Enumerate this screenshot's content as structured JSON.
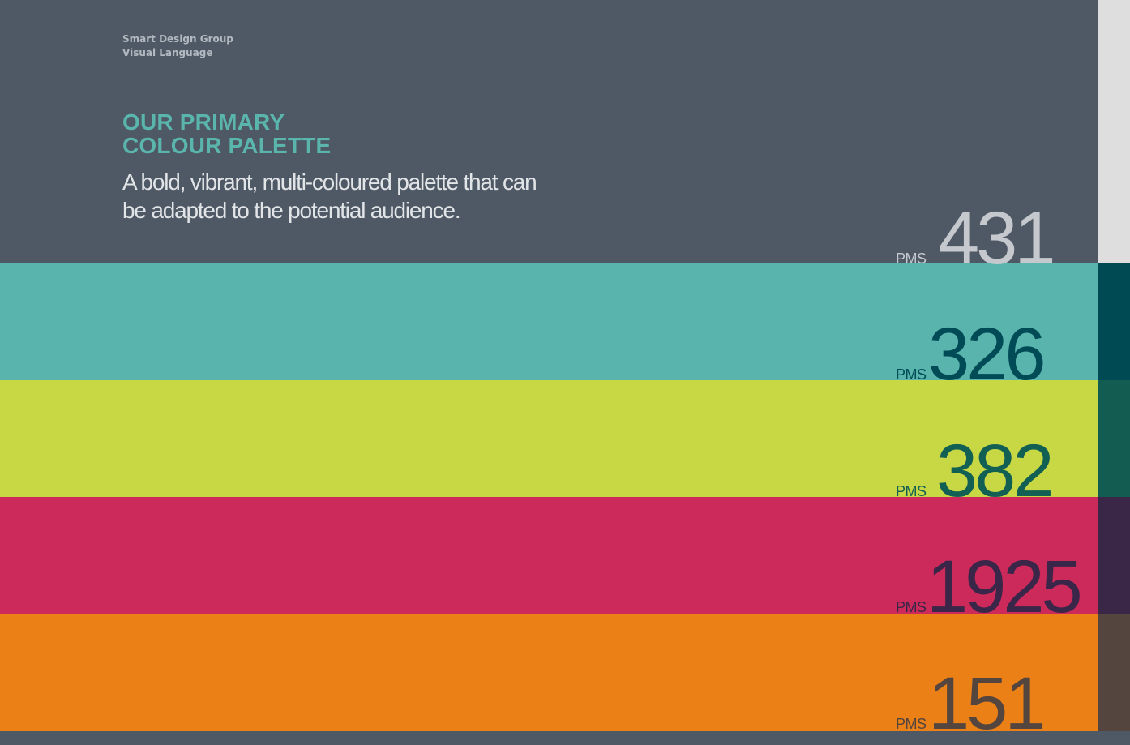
{
  "header": {
    "company": "Smart Design Group",
    "document": "Visual Language"
  },
  "section": {
    "title_line1": "OUR PRIMARY",
    "title_line2": "COLOUR PALETTE",
    "description": "A bold, vibrant, multi-coloured palette that can be adapted to the potential audience."
  },
  "palette": [
    {
      "label": "PMS",
      "number": "431",
      "color": "#4f5965",
      "text_color": "#c5c8cd",
      "tab_color": "#dddedd"
    },
    {
      "label": "PMS",
      "number": "326",
      "color": "#58b4ad",
      "text_color": "#004b55",
      "tab_color": "#004a53"
    },
    {
      "label": "PMS",
      "number": "382",
      "color": "#c8d844",
      "text_color": "#125f53",
      "tab_color": "#125c52"
    },
    {
      "label": "PMS",
      "number": "1925",
      "color": "#cc2a5b",
      "text_color": "#3a2648",
      "tab_color": "#3a2747"
    },
    {
      "label": "PMS",
      "number": "151",
      "color": "#eb8016",
      "text_color": "#54453f",
      "tab_color": "#54453e"
    }
  ]
}
